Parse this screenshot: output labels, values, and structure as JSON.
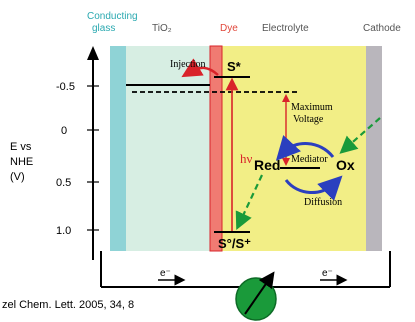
{
  "headers": {
    "conducting_glass_line1": "Conducting",
    "conducting_glass_line2": "glass",
    "tio2": "TiO₂",
    "dye": "Dye",
    "electrolyte": "Electrolyte",
    "cathode": "Cathode"
  },
  "axis": {
    "label_line1": "E vs",
    "label_line2": "NHE",
    "label_line3": "(V)",
    "ticks": [
      "-0.5",
      "0",
      "0.5",
      "1.0"
    ]
  },
  "diagram": {
    "injection": "Injection",
    "s_star": "S*",
    "hv": "hν",
    "maximum_voltage_line1": "Maximum",
    "maximum_voltage_line2": "Voltage",
    "mediator": "Mediator",
    "red": "Red",
    "ox": "Ox",
    "diffusion": "Diffusion",
    "s_ground": "S°/S⁺"
  },
  "circuit": {
    "electron_left": "e⁻",
    "electron_right": "e⁻"
  },
  "citation": "zel Chem. Lett. 2005, 34, 8",
  "colors": {
    "glass": "#8fd3d6",
    "tio2": "#d7eee3",
    "dye": "#f07b72",
    "electrolyte": "#f2ee86",
    "cathode": "#b9b6bc",
    "header_teal": "#2aa9b0",
    "header_red": "#e0463a",
    "green": "#1a9a3a",
    "blue": "#2b3fbf",
    "red": "#d9232a"
  }
}
